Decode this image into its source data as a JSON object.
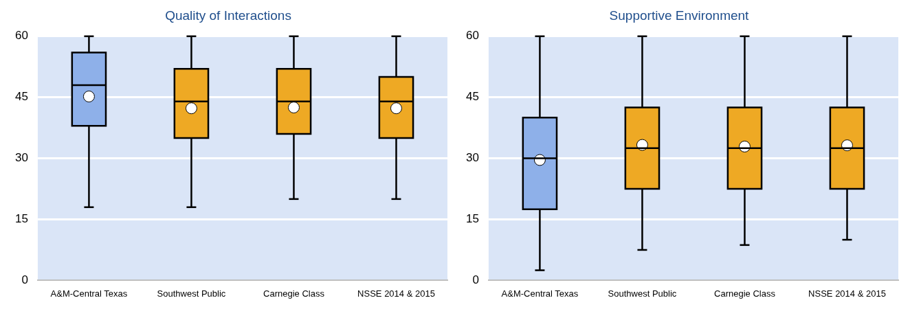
{
  "chart_data": [
    {
      "type": "box",
      "title": "Quality of Interactions",
      "categories": [
        "A&M-Central Texas",
        "Southwest Public",
        "Carnegie Class",
        "NSSE 2014 & 2015"
      ],
      "boxes": [
        {
          "low": 18,
          "q1": 38,
          "median": 48,
          "q3": 56,
          "high": 60,
          "mean": 45.2
        },
        {
          "low": 18,
          "q1": 35,
          "median": 44,
          "q3": 52,
          "high": 60,
          "mean": 42.3
        },
        {
          "low": 20,
          "q1": 36,
          "median": 44,
          "q3": 52,
          "high": 60,
          "mean": 42.5
        },
        {
          "low": 20,
          "q1": 35,
          "median": 44,
          "q3": 50,
          "high": 60,
          "mean": 42.3
        }
      ],
      "colors": [
        "#8eb0e9",
        "#eea924",
        "#eea924",
        "#eea924"
      ],
      "ylim": [
        0,
        60
      ],
      "yticks": [
        0,
        15,
        30,
        45,
        60
      ],
      "grid": "y",
      "legend": false
    },
    {
      "type": "box",
      "title": "Supportive Environment",
      "categories": [
        "A&M-Central Texas",
        "Southwest Public",
        "Carnegie Class",
        "NSSE 2014 & 2015"
      ],
      "boxes": [
        {
          "low": 2.5,
          "q1": 17.5,
          "median": 30,
          "q3": 40,
          "high": 60,
          "mean": 29.6
        },
        {
          "low": 7.5,
          "q1": 22.5,
          "median": 32.5,
          "q3": 42.5,
          "high": 60,
          "mean": 33.3
        },
        {
          "low": 8.7,
          "q1": 22.5,
          "median": 32.5,
          "q3": 42.5,
          "high": 60,
          "mean": 32.9
        },
        {
          "low": 10,
          "q1": 22.5,
          "median": 32.5,
          "q3": 42.5,
          "high": 60,
          "mean": 33.2
        }
      ],
      "colors": [
        "#8eb0e9",
        "#eea924",
        "#eea924",
        "#eea924"
      ],
      "ylim": [
        0,
        60
      ],
      "yticks": [
        0,
        15,
        30,
        45,
        60
      ],
      "grid": "y",
      "legend": false
    }
  ]
}
